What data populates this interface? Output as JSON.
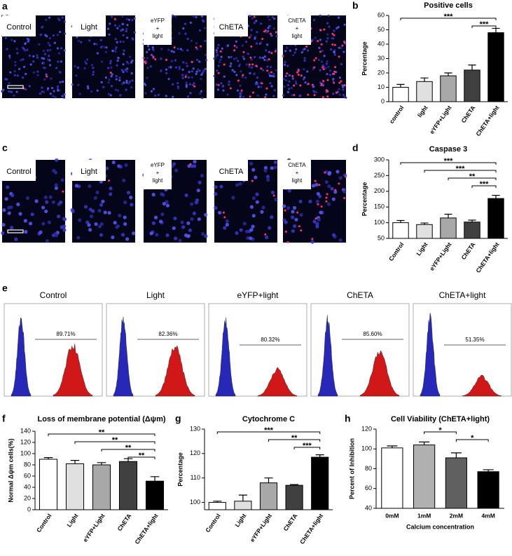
{
  "panel_letters": [
    "a",
    "b",
    "c",
    "d",
    "e",
    "f",
    "g",
    "h"
  ],
  "image_rows": [
    {
      "labels": [
        [
          "Control"
        ],
        [
          "Light"
        ],
        [
          "eYFP",
          "+",
          "light"
        ],
        [
          "ChETA"
        ],
        [
          "ChETA",
          "+",
          "light"
        ]
      ]
    },
    {
      "labels": [
        [
          "Control"
        ],
        [
          "Light"
        ],
        [
          "eYFP",
          "+",
          "light"
        ],
        [
          "ChETA"
        ],
        [
          "ChETA",
          "+",
          "light"
        ]
      ]
    }
  ],
  "flow_cytometry": {
    "titles": [
      "Control",
      "Light",
      "eYFP+light",
      "ChETA",
      "ChETA+light"
    ],
    "gated_percent": [
      "89.71%",
      "82.36%",
      "80.32%",
      "85.60%",
      "51.35%"
    ]
  },
  "chart_data": [
    {
      "type": "bar",
      "title": "Positive cells",
      "ylabel": "Percentage",
      "categories": [
        "control",
        "light",
        "eYFP+Light",
        "ChETA",
        "ChETA+light"
      ],
      "values": [
        10,
        14,
        18,
        22,
        48
      ],
      "errors": [
        2,
        2.5,
        2,
        3.5,
        3
      ],
      "colors": [
        "#ffffff",
        "#e0e0e0",
        "#a8a8a8",
        "#404040",
        "#000000"
      ],
      "ylim": [
        0,
        60
      ],
      "yticks": [
        0,
        10,
        20,
        30,
        40,
        50,
        60
      ],
      "annotations": [
        {
          "text": "***",
          "between": [
            "control",
            "ChETA+light"
          ]
        },
        {
          "text": "***",
          "between": [
            "ChETA",
            "ChETA+light"
          ]
        }
      ]
    },
    {
      "type": "bar",
      "title": "Caspase 3",
      "ylabel": "Percentage",
      "categories": [
        "Control",
        "Light",
        "eYFP+Light",
        "ChETA",
        "ChETA+light"
      ],
      "values": [
        100,
        94,
        115,
        102,
        177
      ],
      "errors": [
        7,
        5,
        12,
        6,
        10
      ],
      "colors": [
        "#ffffff",
        "#e0e0e0",
        "#a8a8a8",
        "#404040",
        "#000000"
      ],
      "ylim": [
        50,
        300
      ],
      "yticks": [
        50,
        100,
        150,
        200,
        250,
        300
      ],
      "annotations": [
        {
          "text": "***",
          "between": [
            "Control",
            "ChETA+light"
          ]
        },
        {
          "text": "***",
          "between": [
            "Light",
            "ChETA+light"
          ]
        },
        {
          "text": "**",
          "between": [
            "eYFP+Light",
            "ChETA+light"
          ]
        },
        {
          "text": "***",
          "between": [
            "ChETA",
            "ChETA+light"
          ]
        }
      ]
    },
    {
      "type": "bar",
      "title": "Loss of  membrane potential (Δψm)",
      "ylabel": "Normal Δψm cells(%)",
      "categories": [
        "Control",
        "Light",
        "eYFP+Light",
        "ChETA",
        "ChETA+light"
      ],
      "values": [
        90,
        82,
        80,
        86,
        51
      ],
      "errors": [
        3,
        6,
        4,
        5,
        8
      ],
      "colors": [
        "#ffffff",
        "#e0e0e0",
        "#a8a8a8",
        "#404040",
        "#000000"
      ],
      "ylim": [
        0,
        140
      ],
      "yticks": [
        0,
        20,
        40,
        60,
        80,
        100,
        120,
        140
      ],
      "annotations": [
        {
          "text": "**",
          "between": [
            "Control",
            "ChETA+light"
          ]
        },
        {
          "text": "**",
          "between": [
            "Light",
            "ChETA+light"
          ]
        },
        {
          "text": "**",
          "between": [
            "eYFP+Light",
            "ChETA+light"
          ]
        },
        {
          "text": "**",
          "between": [
            "ChETA",
            "ChETA+light"
          ]
        }
      ]
    },
    {
      "type": "bar",
      "title": "Cytochrome C",
      "ylabel": "Percentage",
      "categories": [
        "Control",
        "Light",
        "eYFP+Light",
        "ChETA",
        "ChETA+light"
      ],
      "values": [
        100,
        100.5,
        108,
        107,
        118.5
      ],
      "errors": [
        0.5,
        2.5,
        2,
        0.3,
        1
      ],
      "colors": [
        "#ffffff",
        "#e0e0e0",
        "#a8a8a8",
        "#404040",
        "#000000"
      ],
      "ylim": [
        97,
        130
      ],
      "yticks": [
        100,
        110,
        120,
        130
      ],
      "annotations": [
        {
          "text": "***",
          "between": [
            "Control",
            "ChETA+light"
          ]
        },
        {
          "text": "**",
          "between": [
            "eYFP+Light",
            "ChETA+light"
          ]
        },
        {
          "text": "***",
          "between": [
            "ChETA",
            "ChETA+light"
          ]
        }
      ]
    },
    {
      "type": "bar",
      "title": "Cell Viability (ChETA+light)",
      "ylabel": "Percent of Inhibition",
      "xlabel": "Calcium concentration",
      "categories": [
        "0mM",
        "1mM",
        "2mM",
        "4mM"
      ],
      "values": [
        101,
        104,
        91,
        77
      ],
      "errors": [
        2,
        3,
        5,
        2
      ],
      "colors": [
        "#ffffff",
        "#b0b0b0",
        "#606060",
        "#000000"
      ],
      "ylim": [
        40,
        120
      ],
      "yticks": [
        40,
        60,
        80,
        100,
        120
      ],
      "annotations": [
        {
          "text": "*",
          "between": [
            "1mM",
            "2mM"
          ]
        },
        {
          "text": "*",
          "between": [
            "2mM",
            "4mM"
          ]
        }
      ]
    }
  ]
}
